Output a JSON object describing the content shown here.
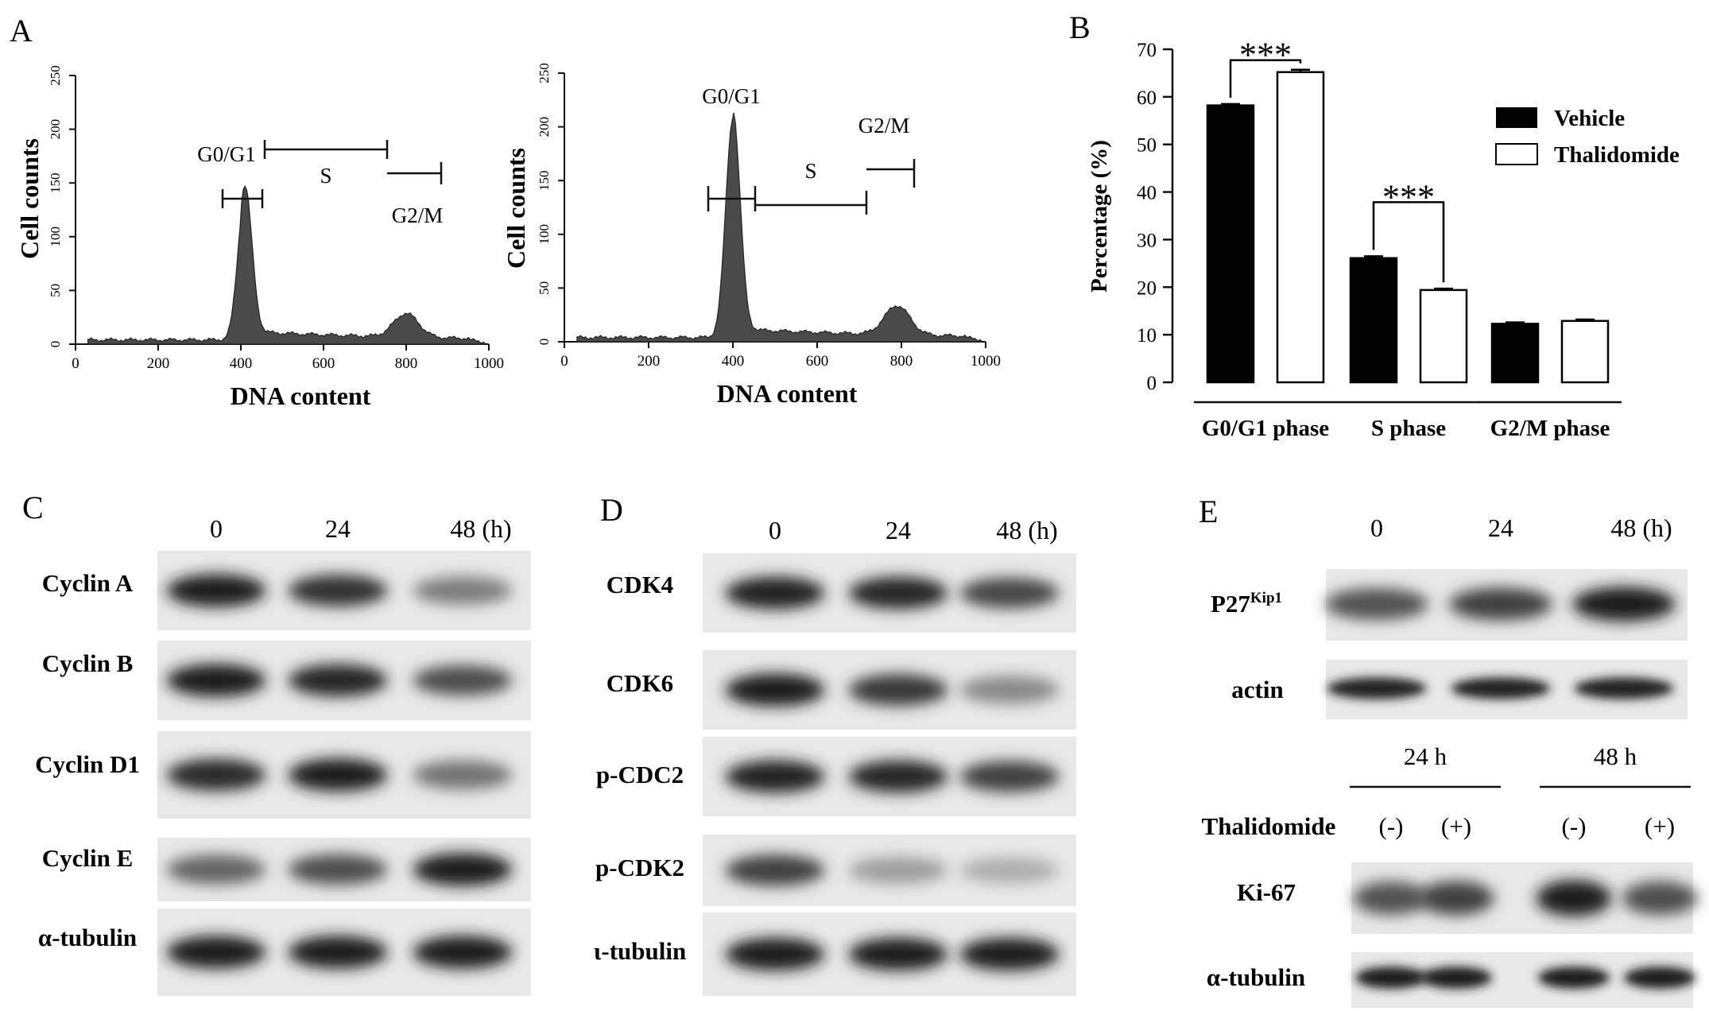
{
  "panels": {
    "A": {
      "letter": "A",
      "histograms": [
        {
          "ylabel": "Cell counts",
          "xlabel": "DNA content",
          "yticks": [
            "0",
            "50",
            "100",
            "150",
            "200",
            "250"
          ],
          "xticks": [
            "0",
            "200",
            "400",
            "600",
            "800",
            "1000"
          ],
          "gates": {
            "g0g1": "G0/G1",
            "s": "S",
            "g2m": "G2/M"
          },
          "peaks": {
            "g0g1_position": 410,
            "g0g1_height": 136,
            "g2m_position": 800,
            "g2m_height": 22
          }
        },
        {
          "ylabel": "Cell counts",
          "xlabel": "DNA content",
          "yticks": [
            "0",
            "50",
            "100",
            "150",
            "200",
            "250"
          ],
          "xticks": [
            "0",
            "200",
            "400",
            "600",
            "800",
            "1000"
          ],
          "gates": {
            "g0g1": "G0/G1",
            "s": "S",
            "g2m": "G2/M"
          },
          "peaks": {
            "g0g1_position": 400,
            "g0g1_height": 204,
            "g2m_position": 790,
            "g2m_height": 27
          }
        }
      ]
    },
    "B": {
      "letter": "B",
      "legend": {
        "vehicle": "Vehicle",
        "thalidomide": "Thalidomide"
      },
      "significance": "***",
      "colors": {
        "vehicle": "#000000",
        "thalidomide": "#ffffff"
      }
    },
    "C": {
      "letter": "C",
      "times": [
        "0",
        "24",
        "48 (h)"
      ],
      "rows": [
        {
          "label": "Cyclin A",
          "intensity": [
            0.95,
            0.85,
            0.5
          ]
        },
        {
          "label": "Cyclin B",
          "intensity": [
            0.95,
            0.9,
            0.72
          ]
        },
        {
          "label": "Cyclin D1",
          "intensity": [
            0.88,
            0.95,
            0.55
          ]
        },
        {
          "label": "Cyclin E",
          "intensity": [
            0.62,
            0.72,
            0.95
          ]
        },
        {
          "label": "α-tubulin",
          "intensity": [
            0.95,
            0.95,
            0.95
          ]
        }
      ]
    },
    "D": {
      "letter": "D",
      "times": [
        "0",
        "24",
        "48 (h)"
      ],
      "rows": [
        {
          "label": "CDK4",
          "intensity": [
            0.92,
            0.9,
            0.75
          ]
        },
        {
          "label": "CDK6",
          "intensity": [
            0.95,
            0.82,
            0.45
          ]
        },
        {
          "label": "p-CDC2",
          "intensity": [
            0.92,
            0.9,
            0.78
          ]
        },
        {
          "label": "p-CDK2",
          "intensity": [
            0.78,
            0.35,
            0.28
          ]
        },
        {
          "label": "ι-tubulin",
          "intensity": [
            0.95,
            0.95,
            0.95
          ]
        }
      ]
    },
    "E": {
      "letter": "E",
      "times": [
        "0",
        "24",
        "48 (h)"
      ],
      "p27": {
        "label": "P27",
        "superscript": "Kip1",
        "intensity": [
          0.7,
          0.78,
          0.95
        ]
      },
      "actin": {
        "label": "actin",
        "intensity": [
          0.92,
          0.92,
          0.92
        ]
      },
      "groups": [
        "24 h",
        "48 h"
      ],
      "treatment_label": "Thalidomide",
      "treatments": [
        "(-)",
        "(+)",
        "(-)",
        "(+)"
      ],
      "ki67": {
        "label": "Ki-67",
        "intensity": [
          0.7,
          0.78,
          0.95,
          0.72
        ]
      },
      "tubulin": {
        "label": "α-tubulin",
        "intensity": [
          0.95,
          0.95,
          0.95,
          0.95
        ]
      }
    }
  },
  "chart_data": {
    "type": "bar",
    "categories": [
      "G0/G1 phase",
      "S phase",
      "G2/M phase"
    ],
    "series": [
      {
        "name": "Vehicle",
        "values": [
          58.2,
          26.1,
          12.3
        ],
        "errors": [
          0.3,
          0.4,
          0.3
        ]
      },
      {
        "name": "Thalidomide",
        "values": [
          65.2,
          19.4,
          12.9
        ],
        "errors": [
          0.5,
          0.3,
          0.3
        ]
      }
    ],
    "ylabel": "Percentage (%)",
    "ylim": [
      0,
      70
    ],
    "yticks": [
      0,
      10,
      20,
      30,
      40,
      50,
      60,
      70
    ],
    "legend": "top-right",
    "annotations": [
      "***",
      "***"
    ]
  }
}
